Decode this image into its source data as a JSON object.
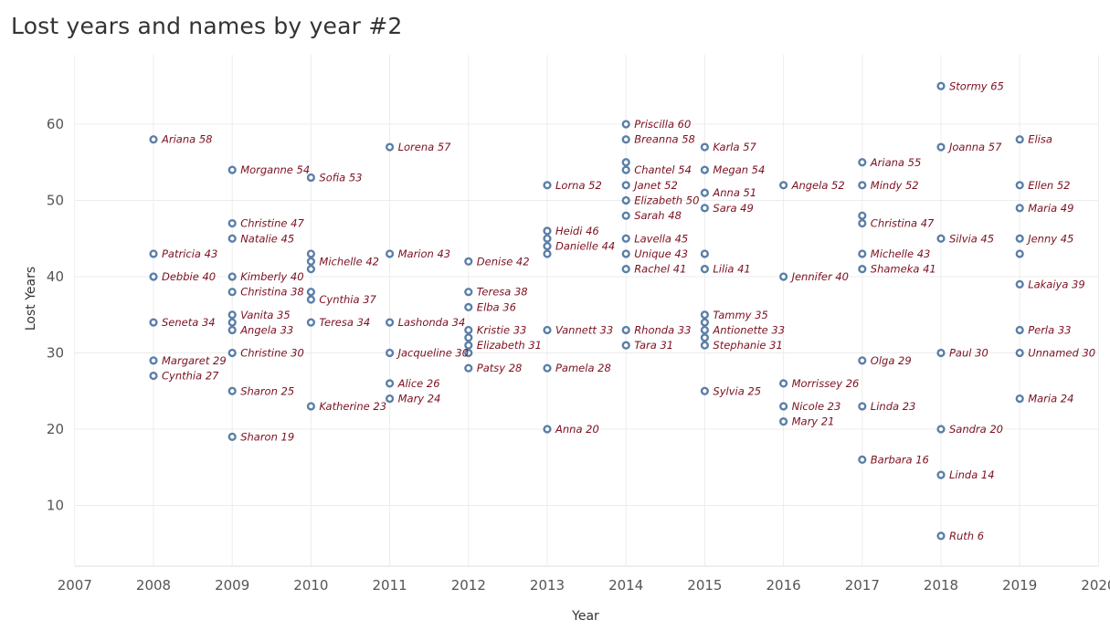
{
  "title": "Lost years and names by year #2",
  "chart_data": {
    "type": "scatter",
    "title": "Lost years and names by year #2",
    "xlabel": "Year",
    "ylabel": "Lost Years",
    "xlim": [
      2007,
      2020
    ],
    "ylim": [
      2,
      68
    ],
    "xticks": [
      2007,
      2008,
      2009,
      2010,
      2011,
      2012,
      2013,
      2014,
      2015,
      2016,
      2017,
      2018,
      2019,
      2020
    ],
    "yticks": [
      10,
      20,
      30,
      40,
      50,
      60
    ],
    "grid": true,
    "colors": {
      "point": "#5b7fa8",
      "label": "#7b1020"
    },
    "points": [
      {
        "x": 2008,
        "y": 58,
        "label": "Ariana 58"
      },
      {
        "x": 2008,
        "y": 43,
        "label": "Patricia 43"
      },
      {
        "x": 2008,
        "y": 40,
        "label": "Debbie 40"
      },
      {
        "x": 2008,
        "y": 34,
        "label": "Seneta 34"
      },
      {
        "x": 2008,
        "y": 29,
        "label": "Margaret 29"
      },
      {
        "x": 2008,
        "y": 27,
        "label": "Cynthia 27"
      },
      {
        "x": 2009,
        "y": 54,
        "label": "Morganne 54"
      },
      {
        "x": 2009,
        "y": 47,
        "label": "Christine 47"
      },
      {
        "x": 2009,
        "y": 45,
        "label": "Natalie 45"
      },
      {
        "x": 2009,
        "y": 40,
        "label": "Kimberly 40"
      },
      {
        "x": 2009,
        "y": 38,
        "label": "Christina 38"
      },
      {
        "x": 2009,
        "y": 35,
        "label": "Vanita 35"
      },
      {
        "x": 2009,
        "y": 34,
        "label": ""
      },
      {
        "x": 2009,
        "y": 33,
        "label": "Angela 33"
      },
      {
        "x": 2009,
        "y": 30,
        "label": "Christine 30"
      },
      {
        "x": 2009,
        "y": 25,
        "label": "Sharon 25"
      },
      {
        "x": 2009,
        "y": 19,
        "label": "Sharon 19"
      },
      {
        "x": 2010,
        "y": 53,
        "label": "Sofia 53"
      },
      {
        "x": 2010,
        "y": 43,
        "label": ""
      },
      {
        "x": 2010,
        "y": 42,
        "label": "Michelle 42"
      },
      {
        "x": 2010,
        "y": 41,
        "label": ""
      },
      {
        "x": 2010,
        "y": 38,
        "label": ""
      },
      {
        "x": 2010,
        "y": 37,
        "label": "Cynthia 37"
      },
      {
        "x": 2010,
        "y": 34,
        "label": "Teresa 34"
      },
      {
        "x": 2010,
        "y": 23,
        "label": "Katherine 23"
      },
      {
        "x": 2011,
        "y": 57,
        "label": "Lorena 57"
      },
      {
        "x": 2011,
        "y": 43,
        "label": "Marion 43"
      },
      {
        "x": 2011,
        "y": 34,
        "label": "Lashonda 34"
      },
      {
        "x": 2011,
        "y": 30,
        "label": "Jacqueline 30"
      },
      {
        "x": 2011,
        "y": 26,
        "label": "Alice 26"
      },
      {
        "x": 2011,
        "y": 24,
        "label": "Mary 24"
      },
      {
        "x": 2012,
        "y": 42,
        "label": "Denise 42"
      },
      {
        "x": 2012,
        "y": 38,
        "label": "Teresa 38"
      },
      {
        "x": 2012,
        "y": 36,
        "label": "Elba 36"
      },
      {
        "x": 2012,
        "y": 33,
        "label": "Kristie 33"
      },
      {
        "x": 2012,
        "y": 32,
        "label": ""
      },
      {
        "x": 2012,
        "y": 31,
        "label": "Elizabeth 31"
      },
      {
        "x": 2012,
        "y": 30,
        "label": ""
      },
      {
        "x": 2012,
        "y": 28,
        "label": "Patsy 28"
      },
      {
        "x": 2013,
        "y": 52,
        "label": "Lorna 52"
      },
      {
        "x": 2013,
        "y": 46,
        "label": "Heidi 46"
      },
      {
        "x": 2013,
        "y": 45,
        "label": ""
      },
      {
        "x": 2013,
        "y": 44,
        "label": "Danielle 44"
      },
      {
        "x": 2013,
        "y": 43,
        "label": ""
      },
      {
        "x": 2013,
        "y": 33,
        "label": "Vannett 33"
      },
      {
        "x": 2013,
        "y": 28,
        "label": "Pamela 28"
      },
      {
        "x": 2013,
        "y": 20,
        "label": "Anna 20"
      },
      {
        "x": 2014,
        "y": 60,
        "label": "Priscilla 60"
      },
      {
        "x": 2014,
        "y": 58,
        "label": "Breanna 58"
      },
      {
        "x": 2014,
        "y": 55,
        "label": ""
      },
      {
        "x": 2014,
        "y": 54,
        "label": "Chantel 54"
      },
      {
        "x": 2014,
        "y": 52,
        "label": "Janet 52"
      },
      {
        "x": 2014,
        "y": 50,
        "label": "Elizabeth 50"
      },
      {
        "x": 2014,
        "y": 48,
        "label": "Sarah 48"
      },
      {
        "x": 2014,
        "y": 45,
        "label": "Lavella 45"
      },
      {
        "x": 2014,
        "y": 43,
        "label": "Unique 43"
      },
      {
        "x": 2014,
        "y": 41,
        "label": "Rachel 41"
      },
      {
        "x": 2014,
        "y": 33,
        "label": "Rhonda 33"
      },
      {
        "x": 2014,
        "y": 31,
        "label": "Tara 31"
      },
      {
        "x": 2015,
        "y": 57,
        "label": "Karla 57"
      },
      {
        "x": 2015,
        "y": 54,
        "label": "Megan 54"
      },
      {
        "x": 2015,
        "y": 51,
        "label": "Anna 51"
      },
      {
        "x": 2015,
        "y": 49,
        "label": "Sara 49"
      },
      {
        "x": 2015,
        "y": 43,
        "label": ""
      },
      {
        "x": 2015,
        "y": 41,
        "label": "Lilia 41"
      },
      {
        "x": 2015,
        "y": 35,
        "label": "Tammy 35"
      },
      {
        "x": 2015,
        "y": 34,
        "label": ""
      },
      {
        "x": 2015,
        "y": 33,
        "label": "Antionette 33"
      },
      {
        "x": 2015,
        "y": 32,
        "label": ""
      },
      {
        "x": 2015,
        "y": 31,
        "label": "Stephanie 31"
      },
      {
        "x": 2015,
        "y": 25,
        "label": "Sylvia 25"
      },
      {
        "x": 2016,
        "y": 52,
        "label": "Angela 52"
      },
      {
        "x": 2016,
        "y": 40,
        "label": "Jennifer 40"
      },
      {
        "x": 2016,
        "y": 26,
        "label": "Morrissey 26"
      },
      {
        "x": 2016,
        "y": 23,
        "label": "Nicole 23"
      },
      {
        "x": 2016,
        "y": 21,
        "label": "Mary 21"
      },
      {
        "x": 2017,
        "y": 55,
        "label": "Ariana 55"
      },
      {
        "x": 2017,
        "y": 52,
        "label": "Mindy 52"
      },
      {
        "x": 2017,
        "y": 48,
        "label": ""
      },
      {
        "x": 2017,
        "y": 47,
        "label": "Christina 47"
      },
      {
        "x": 2017,
        "y": 43,
        "label": "Michelle 43"
      },
      {
        "x": 2017,
        "y": 41,
        "label": "Shameka 41"
      },
      {
        "x": 2017,
        "y": 29,
        "label": "Olga 29"
      },
      {
        "x": 2017,
        "y": 23,
        "label": "Linda 23"
      },
      {
        "x": 2017,
        "y": 16,
        "label": "Barbara 16"
      },
      {
        "x": 2018,
        "y": 65,
        "label": "Stormy 65"
      },
      {
        "x": 2018,
        "y": 57,
        "label": "Joanna 57"
      },
      {
        "x": 2018,
        "y": 45,
        "label": "Silvia 45"
      },
      {
        "x": 2018,
        "y": 30,
        "label": "Paul 30"
      },
      {
        "x": 2018,
        "y": 20,
        "label": "Sandra 20"
      },
      {
        "x": 2018,
        "y": 14,
        "label": "Linda 14"
      },
      {
        "x": 2018,
        "y": 6,
        "label": "Ruth 6"
      },
      {
        "x": 2019,
        "y": 58,
        "label": "Elisa"
      },
      {
        "x": 2019,
        "y": 52,
        "label": "Ellen 52"
      },
      {
        "x": 2019,
        "y": 49,
        "label": "Maria 49"
      },
      {
        "x": 2019,
        "y": 45,
        "label": "Jenny 45"
      },
      {
        "x": 2019,
        "y": 43,
        "label": ""
      },
      {
        "x": 2019,
        "y": 39,
        "label": "Lakaiya 39"
      },
      {
        "x": 2019,
        "y": 33,
        "label": "Perla 33"
      },
      {
        "x": 2019,
        "y": 30,
        "label": "Unnamed 30"
      },
      {
        "x": 2019,
        "y": 24,
        "label": "Maria 24"
      }
    ]
  }
}
